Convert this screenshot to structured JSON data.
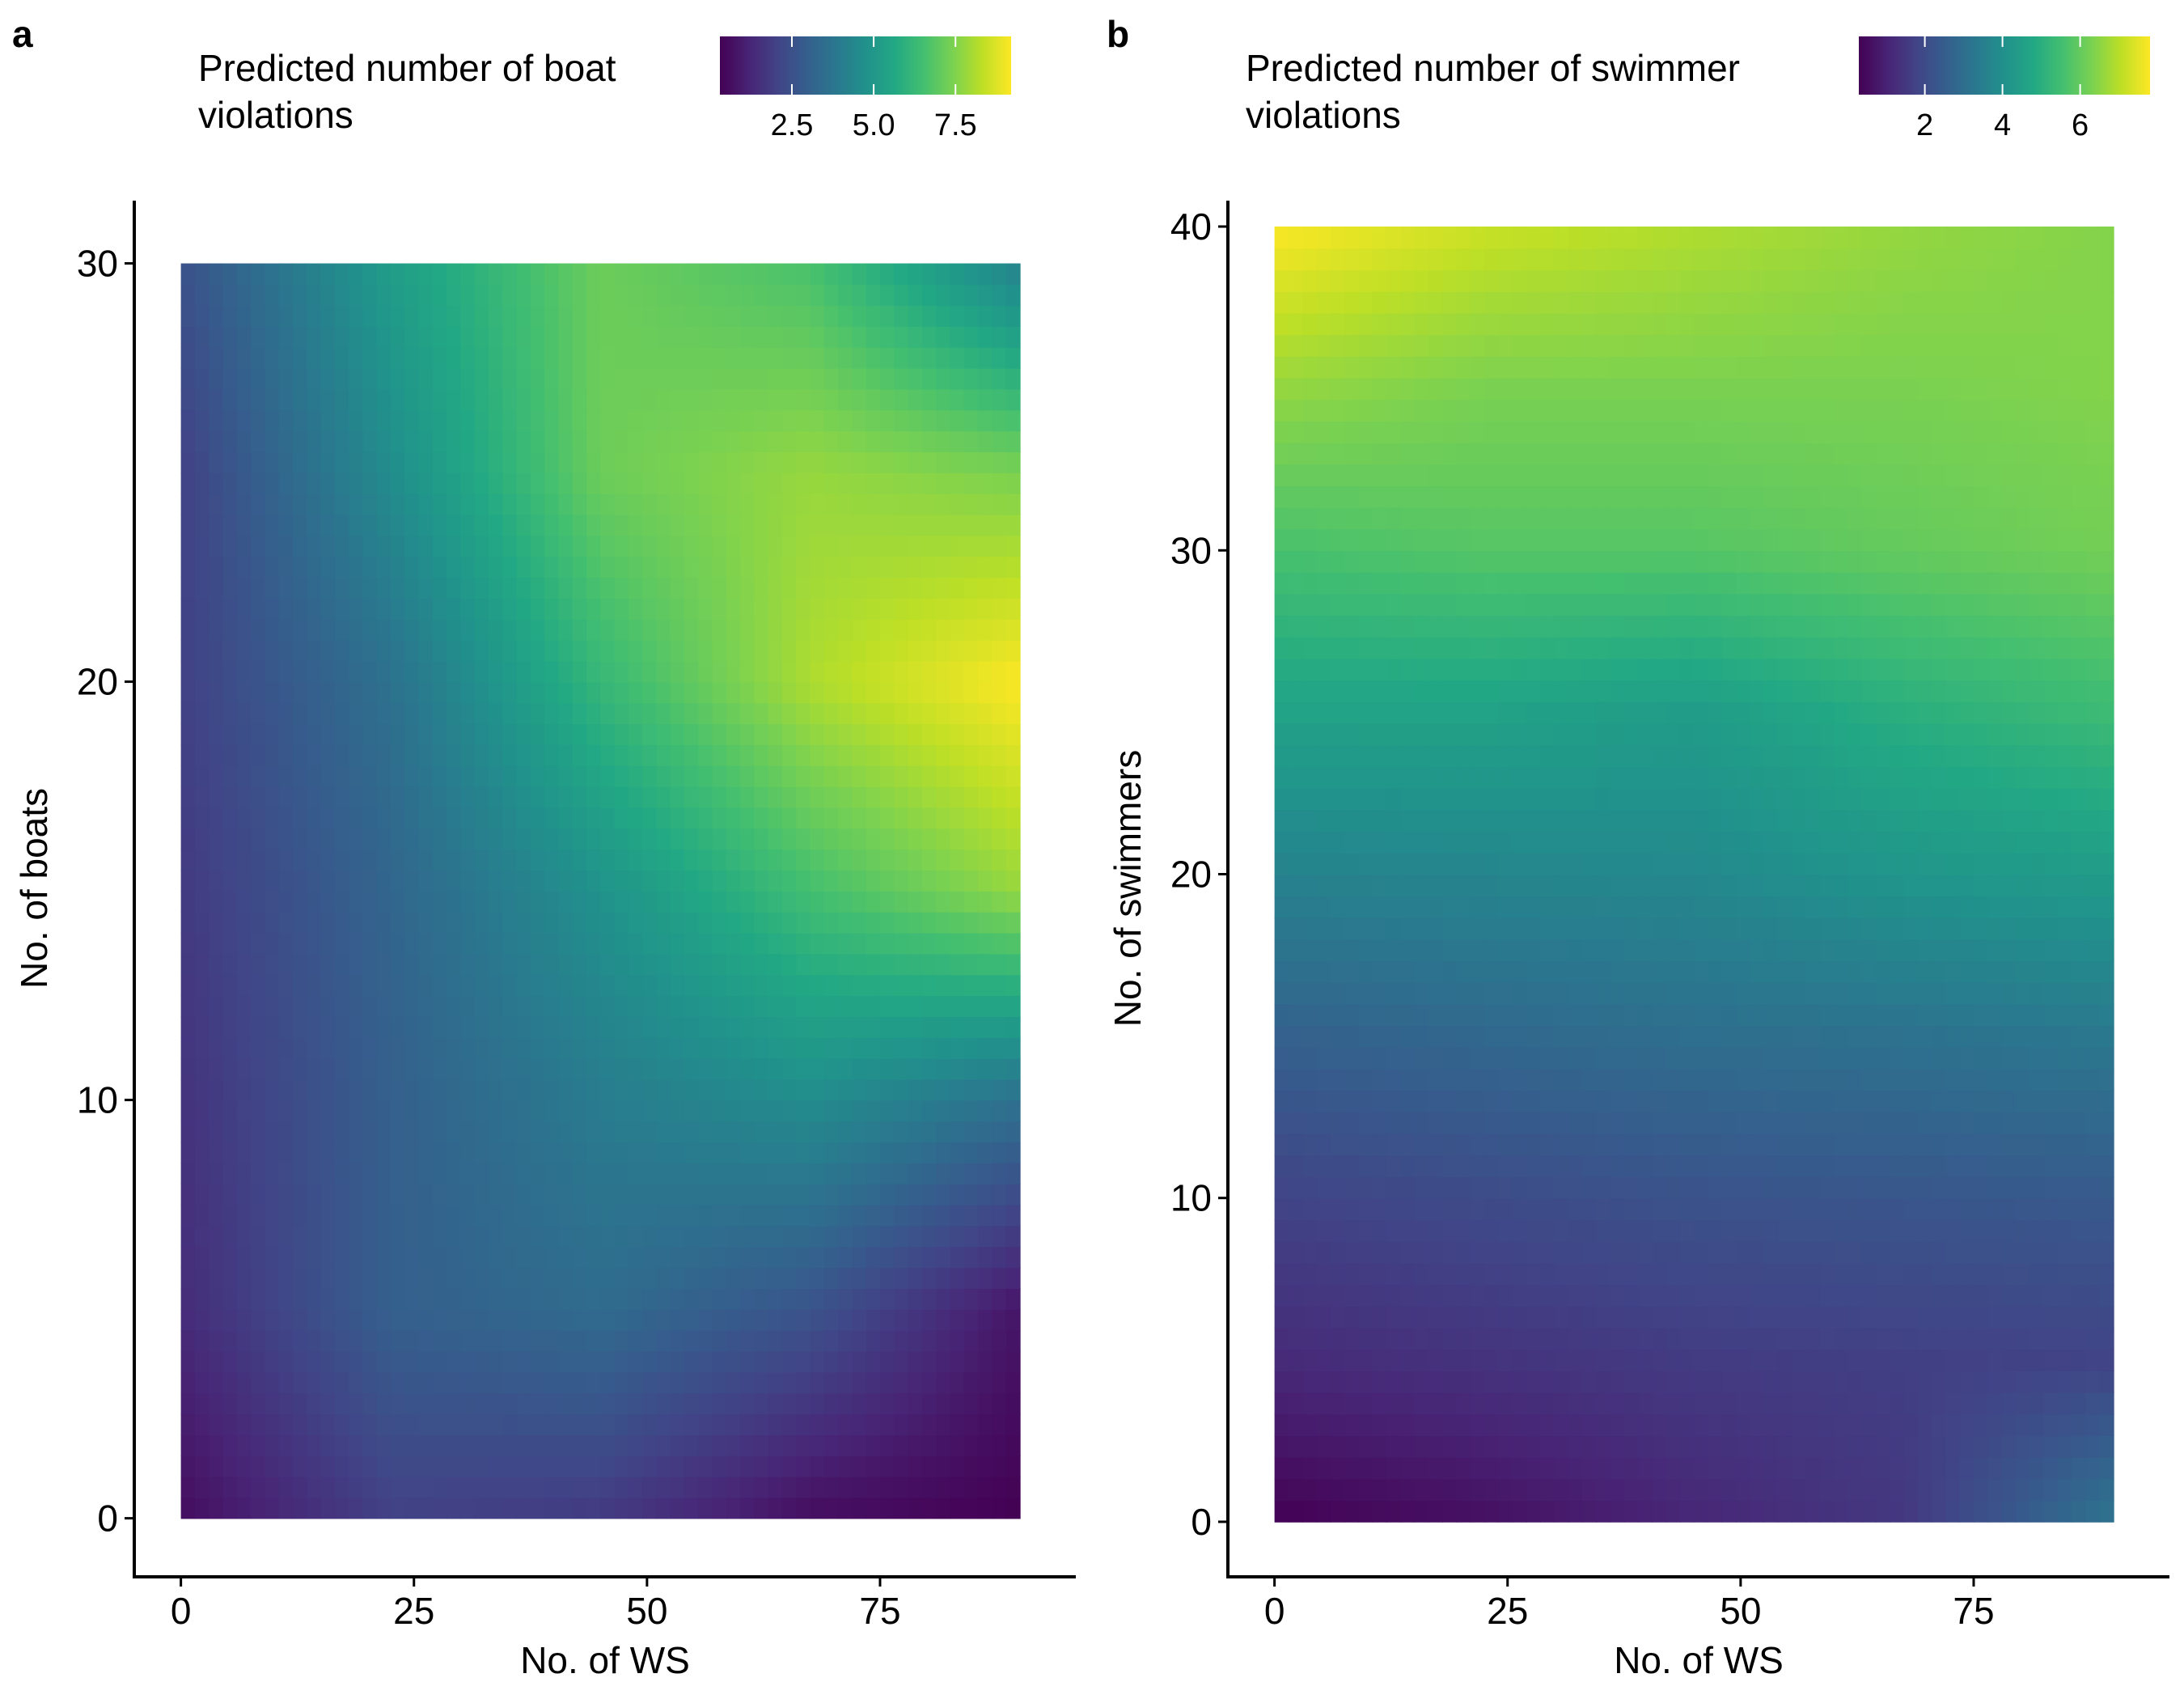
{
  "chart_data": [
    {
      "panel_label": "a",
      "type": "heatmap",
      "legend_title_lines": [
        "Predicted number of boat",
        "violations"
      ],
      "legend_ticks": [
        2.5,
        5.0,
        7.5
      ],
      "legend_tick_labels": [
        "2.5",
        "5.0",
        "7.5"
      ],
      "value_range": [
        0.3,
        9.2
      ],
      "x_range": [
        0,
        90
      ],
      "y_range": [
        0,
        30
      ],
      "xlim": [
        -5,
        96
      ],
      "ylim": [
        -1.4,
        31.5
      ],
      "xlabel": "No. of WS",
      "ylabel": "No. of boats",
      "x_ticks": [
        0,
        25,
        50,
        75
      ],
      "x_tick_labels": [
        "0",
        "25",
        "50",
        "75"
      ],
      "y_ticks": [
        0,
        10,
        20,
        30
      ],
      "y_tick_labels": [
        "0",
        "10",
        "20",
        "30"
      ],
      "field": {
        "x": [
          0,
          22.5,
          45,
          67.5,
          90
        ],
        "y": [
          0,
          5,
          10,
          15,
          20,
          25,
          30
        ],
        "z": [
          [
            0.6,
            2.0,
            1.8,
            0.6,
            0.3
          ],
          [
            1.4,
            3.0,
            3.4,
            2.6,
            0.8
          ],
          [
            1.6,
            3.0,
            4.0,
            4.6,
            3.6
          ],
          [
            1.8,
            3.2,
            4.8,
            6.5,
            7.8
          ],
          [
            2.0,
            3.6,
            6.2,
            8.1,
            9.2
          ],
          [
            2.0,
            4.6,
            7.2,
            7.8,
            7.4
          ],
          [
            2.5,
            5.2,
            7.2,
            6.6,
            4.2
          ]
        ]
      }
    },
    {
      "panel_label": "b",
      "type": "heatmap",
      "legend_title_lines": [
        "Predicted number of swimmer",
        "violations"
      ],
      "legend_ticks": [
        2,
        4,
        6
      ],
      "legend_tick_labels": [
        "2",
        "4",
        "6"
      ],
      "value_range": [
        0.3,
        7.8
      ],
      "x_range": [
        0,
        90
      ],
      "y_range": [
        0,
        40
      ],
      "xlim": [
        -5,
        96
      ],
      "ylim": [
        -1.7,
        40.8
      ],
      "xlabel": "No. of WS",
      "ylabel": "No. of swimmers",
      "x_ticks": [
        0,
        25,
        50,
        75
      ],
      "x_tick_labels": [
        "0",
        "25",
        "50",
        "75"
      ],
      "y_ticks": [
        0,
        10,
        20,
        30,
        40
      ],
      "y_tick_labels": [
        "0",
        "10",
        "20",
        "30",
        "40"
      ],
      "field": {
        "x": [
          0,
          22.5,
          45,
          67.5,
          90
        ],
        "y": [
          0,
          5,
          10,
          15,
          20,
          25,
          30,
          35,
          40
        ],
        "z": [
          [
            0.3,
            0.6,
            1.1,
            1.5,
            3.2
          ],
          [
            1.2,
            1.4,
            1.6,
            1.7,
            1.8
          ],
          [
            1.8,
            2.0,
            2.2,
            2.3,
            2.4
          ],
          [
            2.6,
            2.8,
            3.0,
            3.1,
            3.3
          ],
          [
            3.6,
            3.7,
            3.8,
            4.2,
            4.4
          ],
          [
            4.6,
            4.6,
            4.4,
            5.0,
            5.4
          ],
          [
            5.6,
            5.8,
            5.8,
            6.0,
            6.2
          ],
          [
            6.6,
            6.3,
            6.3,
            6.3,
            6.4
          ],
          [
            7.8,
            7.2,
            6.9,
            6.6,
            6.4
          ]
        ]
      }
    }
  ]
}
